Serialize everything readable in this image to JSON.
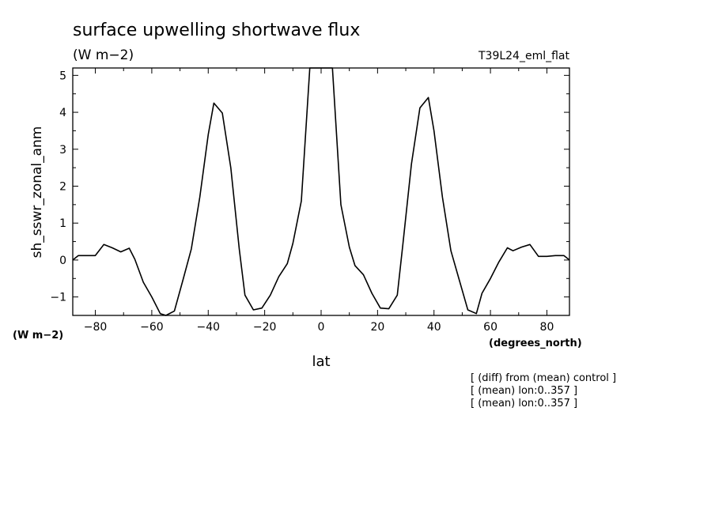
{
  "chart_data": {
    "type": "line",
    "title": "surface upwelling shortwave flux",
    "units": "(W m−2)",
    "run_label": "T39L24_eml_flat",
    "xlabel": "lat",
    "ylabel": "sh_sswr_zonal_anm",
    "x_units": "(degrees_north)",
    "y_units": "(W m−2)",
    "xlim": [
      -88,
      88
    ],
    "ylim": [
      -1.5,
      5.2
    ],
    "x_ticks": [
      -80,
      -60,
      -40,
      -20,
      0,
      20,
      40,
      60,
      80
    ],
    "x_tick_labels": [
      "−80",
      "−60",
      "−40",
      "−20",
      "0",
      "20",
      "40",
      "60",
      "80"
    ],
    "y_ticks": [
      -1,
      0,
      1,
      2,
      3,
      4,
      5
    ],
    "y_tick_labels": [
      "−1",
      "0",
      "1",
      "2",
      "3",
      "4",
      "5"
    ],
    "grid": false,
    "notes": [
      "[ (diff) from (mean) control ]",
      "[ (mean) lon:0..357 ]",
      "[ (mean) lon:0..357 ]"
    ],
    "series": [
      {
        "x": [
          -88,
          -86,
          -83,
          -80,
          -77,
          -74,
          -71,
          -68,
          -66,
          -63,
          -60,
          -57,
          -55,
          -52,
          -49,
          -46,
          -43,
          -40,
          -38,
          -35,
          -32,
          -29,
          -27,
          -24,
          -21,
          -18,
          -15,
          -12,
          -10,
          -7,
          -4,
          -1,
          1,
          4,
          7,
          10,
          12,
          15,
          18,
          21,
          24,
          27,
          29,
          32,
          35,
          38,
          40,
          43,
          46,
          49,
          52,
          55,
          57,
          60,
          63,
          66,
          68,
          71,
          74,
          77,
          80,
          83,
          86,
          88
        ],
        "y": [
          0.0,
          0.12,
          0.12,
          0.12,
          0.42,
          0.33,
          0.22,
          0.32,
          0.02,
          -0.6,
          -1.0,
          -1.45,
          -1.5,
          -1.38,
          -0.55,
          0.3,
          1.7,
          3.4,
          4.25,
          3.98,
          2.5,
          0.3,
          -0.95,
          -1.35,
          -1.3,
          -0.95,
          -0.45,
          -0.1,
          0.45,
          1.6,
          5.2,
          5.2,
          5.2,
          5.2,
          1.5,
          0.35,
          -0.15,
          -0.4,
          -0.9,
          -1.3,
          -1.32,
          -0.95,
          0.45,
          2.6,
          4.12,
          4.4,
          3.5,
          1.7,
          0.25,
          -0.55,
          -1.35,
          -1.45,
          -0.9,
          -0.5,
          -0.05,
          0.33,
          0.25,
          0.35,
          0.42,
          0.1,
          0.1,
          0.12,
          0.12,
          0.0
        ]
      }
    ]
  }
}
